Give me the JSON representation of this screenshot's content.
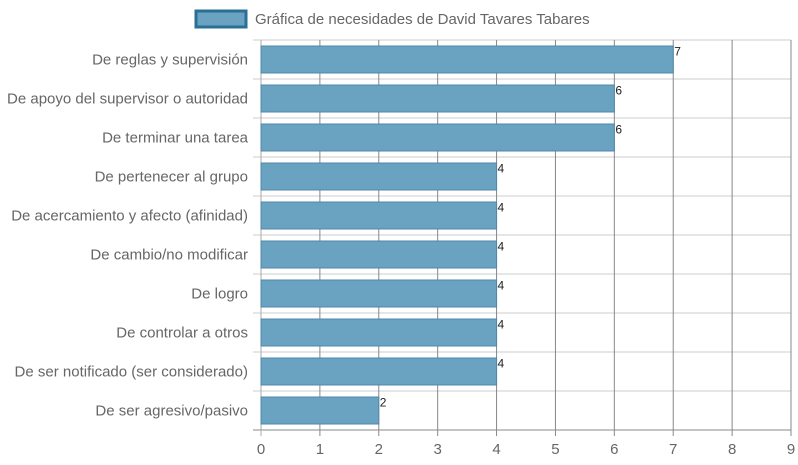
{
  "chart_data": {
    "type": "bar",
    "orientation": "horizontal",
    "categories": [
      "De reglas y supervisión",
      "De apoyo del supervisor o autoridad",
      "De terminar una tarea",
      "De pertenecer al grupo",
      "De acercamiento y afecto (afinidad)",
      "De cambio/no modificar",
      "De logro",
      "De controlar a otros",
      "De ser notificado (ser considerado)",
      "De ser agresivo/pasivo"
    ],
    "series": [
      {
        "name": "Gráfica de necesidades de David Tavares Tabares",
        "values": [
          7,
          6,
          6,
          4,
          4,
          4,
          4,
          4,
          4,
          2
        ]
      }
    ],
    "xlim": [
      0,
      9
    ],
    "x_ticks": [
      "0",
      "1",
      "2",
      "3",
      "4",
      "5",
      "6",
      "7",
      "8",
      "9"
    ],
    "grid": true,
    "legend_position": "top",
    "data_labels": true,
    "colors": {
      "bar_fill": "#6aa3c2",
      "bar_stroke": "#4f87a8",
      "legend_fill": "#6aa3c2",
      "legend_stroke": "#2a6f94",
      "grid": "#cccccc",
      "grid_strong": "#888888",
      "axis_text": "#666666"
    }
  }
}
